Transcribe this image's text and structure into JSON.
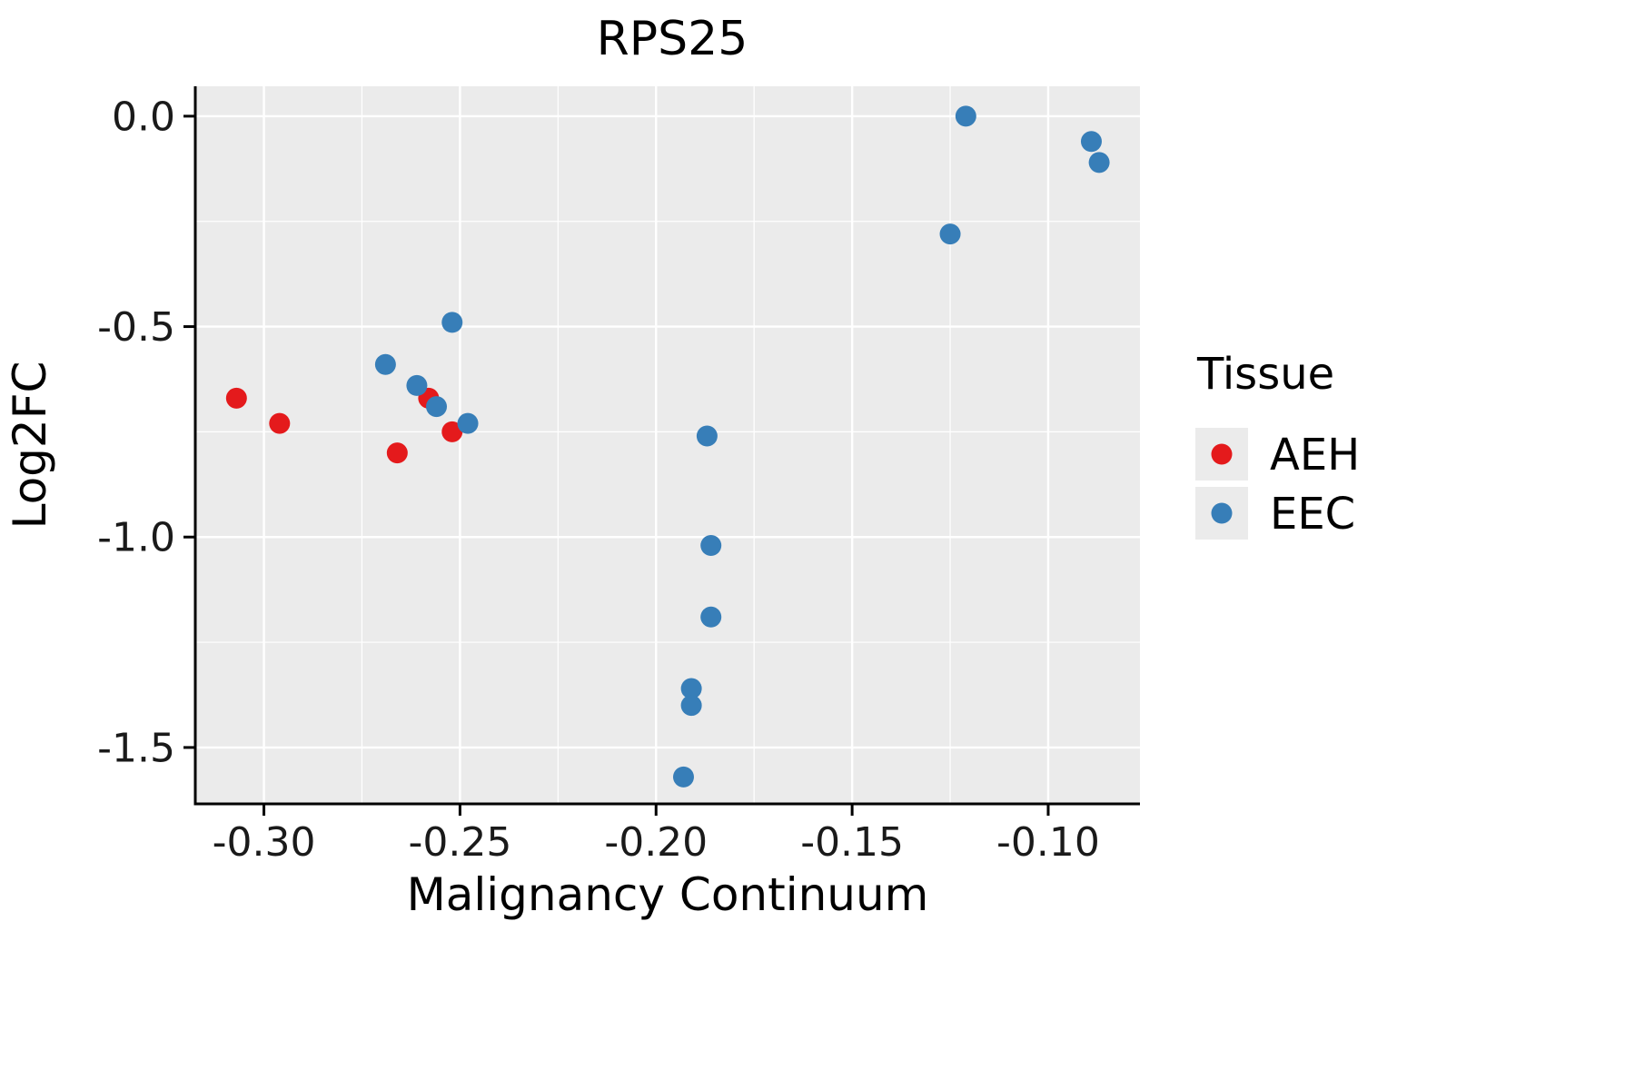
{
  "title": "RPS25",
  "axes": {
    "x": {
      "label": "Malignancy Continuum",
      "ticks": [
        -0.3,
        -0.25,
        -0.2,
        -0.15,
        -0.1
      ],
      "tick_labels": [
        "-0.30",
        "-0.25",
        "-0.20",
        "-0.15",
        "-0.10"
      ],
      "minor_ticks": [
        -0.275,
        -0.225,
        -0.175,
        -0.125
      ],
      "lim": [
        -0.3175,
        -0.0766
      ]
    },
    "y": {
      "label": "Log2FC",
      "ticks": [
        0.0,
        -0.5,
        -1.0,
        -1.5
      ],
      "tick_labels": [
        "0.0",
        "-0.5",
        "-1.0",
        "-1.5"
      ],
      "minor_ticks": [
        -0.25,
        -0.75,
        -1.25
      ],
      "lim": [
        -1.634,
        0.071
      ]
    }
  },
  "legend": {
    "title": "Tissue",
    "items": [
      {
        "label": "AEH",
        "color": "#E41A1C"
      },
      {
        "label": "EEC",
        "color": "#377EB8"
      }
    ]
  },
  "colors": {
    "panel_background": "#EBEBEB",
    "gridline": "#FFFFFF",
    "aeh": "#E41A1C",
    "eec": "#377EB8"
  },
  "chart_data": {
    "type": "scatter",
    "title": "RPS25",
    "xlabel": "Malignancy Continuum",
    "ylabel": "Log2FC",
    "xlim": [
      -0.3175,
      -0.0766
    ],
    "ylim": [
      -1.634,
      0.071
    ],
    "grid": "on",
    "legend_position": "right",
    "series": [
      {
        "name": "AEH",
        "color": "#E41A1C",
        "points": [
          [
            -0.307,
            -0.67
          ],
          [
            -0.296,
            -0.73
          ],
          [
            -0.266,
            -0.8
          ],
          [
            -0.258,
            -0.67
          ],
          [
            -0.252,
            -0.75
          ]
        ]
      },
      {
        "name": "EEC",
        "color": "#377EB8",
        "points": [
          [
            -0.269,
            -0.59
          ],
          [
            -0.261,
            -0.64
          ],
          [
            -0.256,
            -0.69
          ],
          [
            -0.252,
            -0.49
          ],
          [
            -0.248,
            -0.73
          ],
          [
            -0.187,
            -0.76
          ],
          [
            -0.186,
            -1.02
          ],
          [
            -0.186,
            -1.19
          ],
          [
            -0.191,
            -1.36
          ],
          [
            -0.191,
            -1.4
          ],
          [
            -0.193,
            -1.57
          ],
          [
            -0.121,
            0.0
          ],
          [
            -0.125,
            -0.28
          ],
          [
            -0.089,
            -0.06
          ],
          [
            -0.087,
            -0.11
          ]
        ]
      }
    ]
  }
}
